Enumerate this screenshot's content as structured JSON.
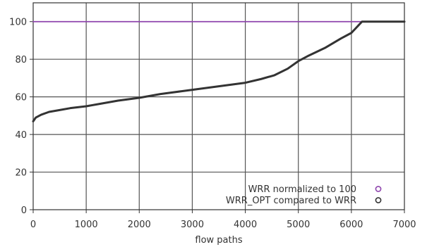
{
  "chart_data": {
    "type": "line",
    "title": "",
    "xlabel": "flow paths",
    "ylabel": "",
    "xlim": [
      0,
      7000
    ],
    "ylim": [
      0,
      110
    ],
    "xticks": [
      0,
      1000,
      2000,
      3000,
      4000,
      5000,
      6000,
      7000
    ],
    "yticks": [
      0,
      20,
      40,
      60,
      80,
      100
    ],
    "grid": true,
    "legend_position": "bottom-right",
    "series": [
      {
        "name": "WRR normalized to 100",
        "color": "#8e44ad",
        "marker": "open-circle",
        "x": [
          0,
          7000
        ],
        "y": [
          100,
          100
        ]
      },
      {
        "name": "WRR_OPT compared to WRR",
        "color": "#333333",
        "marker": "open-circle",
        "x": [
          0,
          50,
          150,
          300,
          500,
          700,
          1000,
          1300,
          1600,
          2000,
          2400,
          2800,
          3200,
          3600,
          4000,
          4300,
          4550,
          4800,
          5000,
          5200,
          5500,
          5800,
          6000,
          6100,
          6200,
          6300,
          7000
        ],
        "y": [
          47,
          49,
          50.5,
          52,
          53,
          54,
          55,
          56.5,
          58,
          59.5,
          61.5,
          63,
          64.5,
          66,
          67.5,
          69.5,
          71.5,
          75,
          79,
          82,
          86,
          91,
          94,
          97,
          100,
          100,
          100
        ]
      }
    ]
  }
}
